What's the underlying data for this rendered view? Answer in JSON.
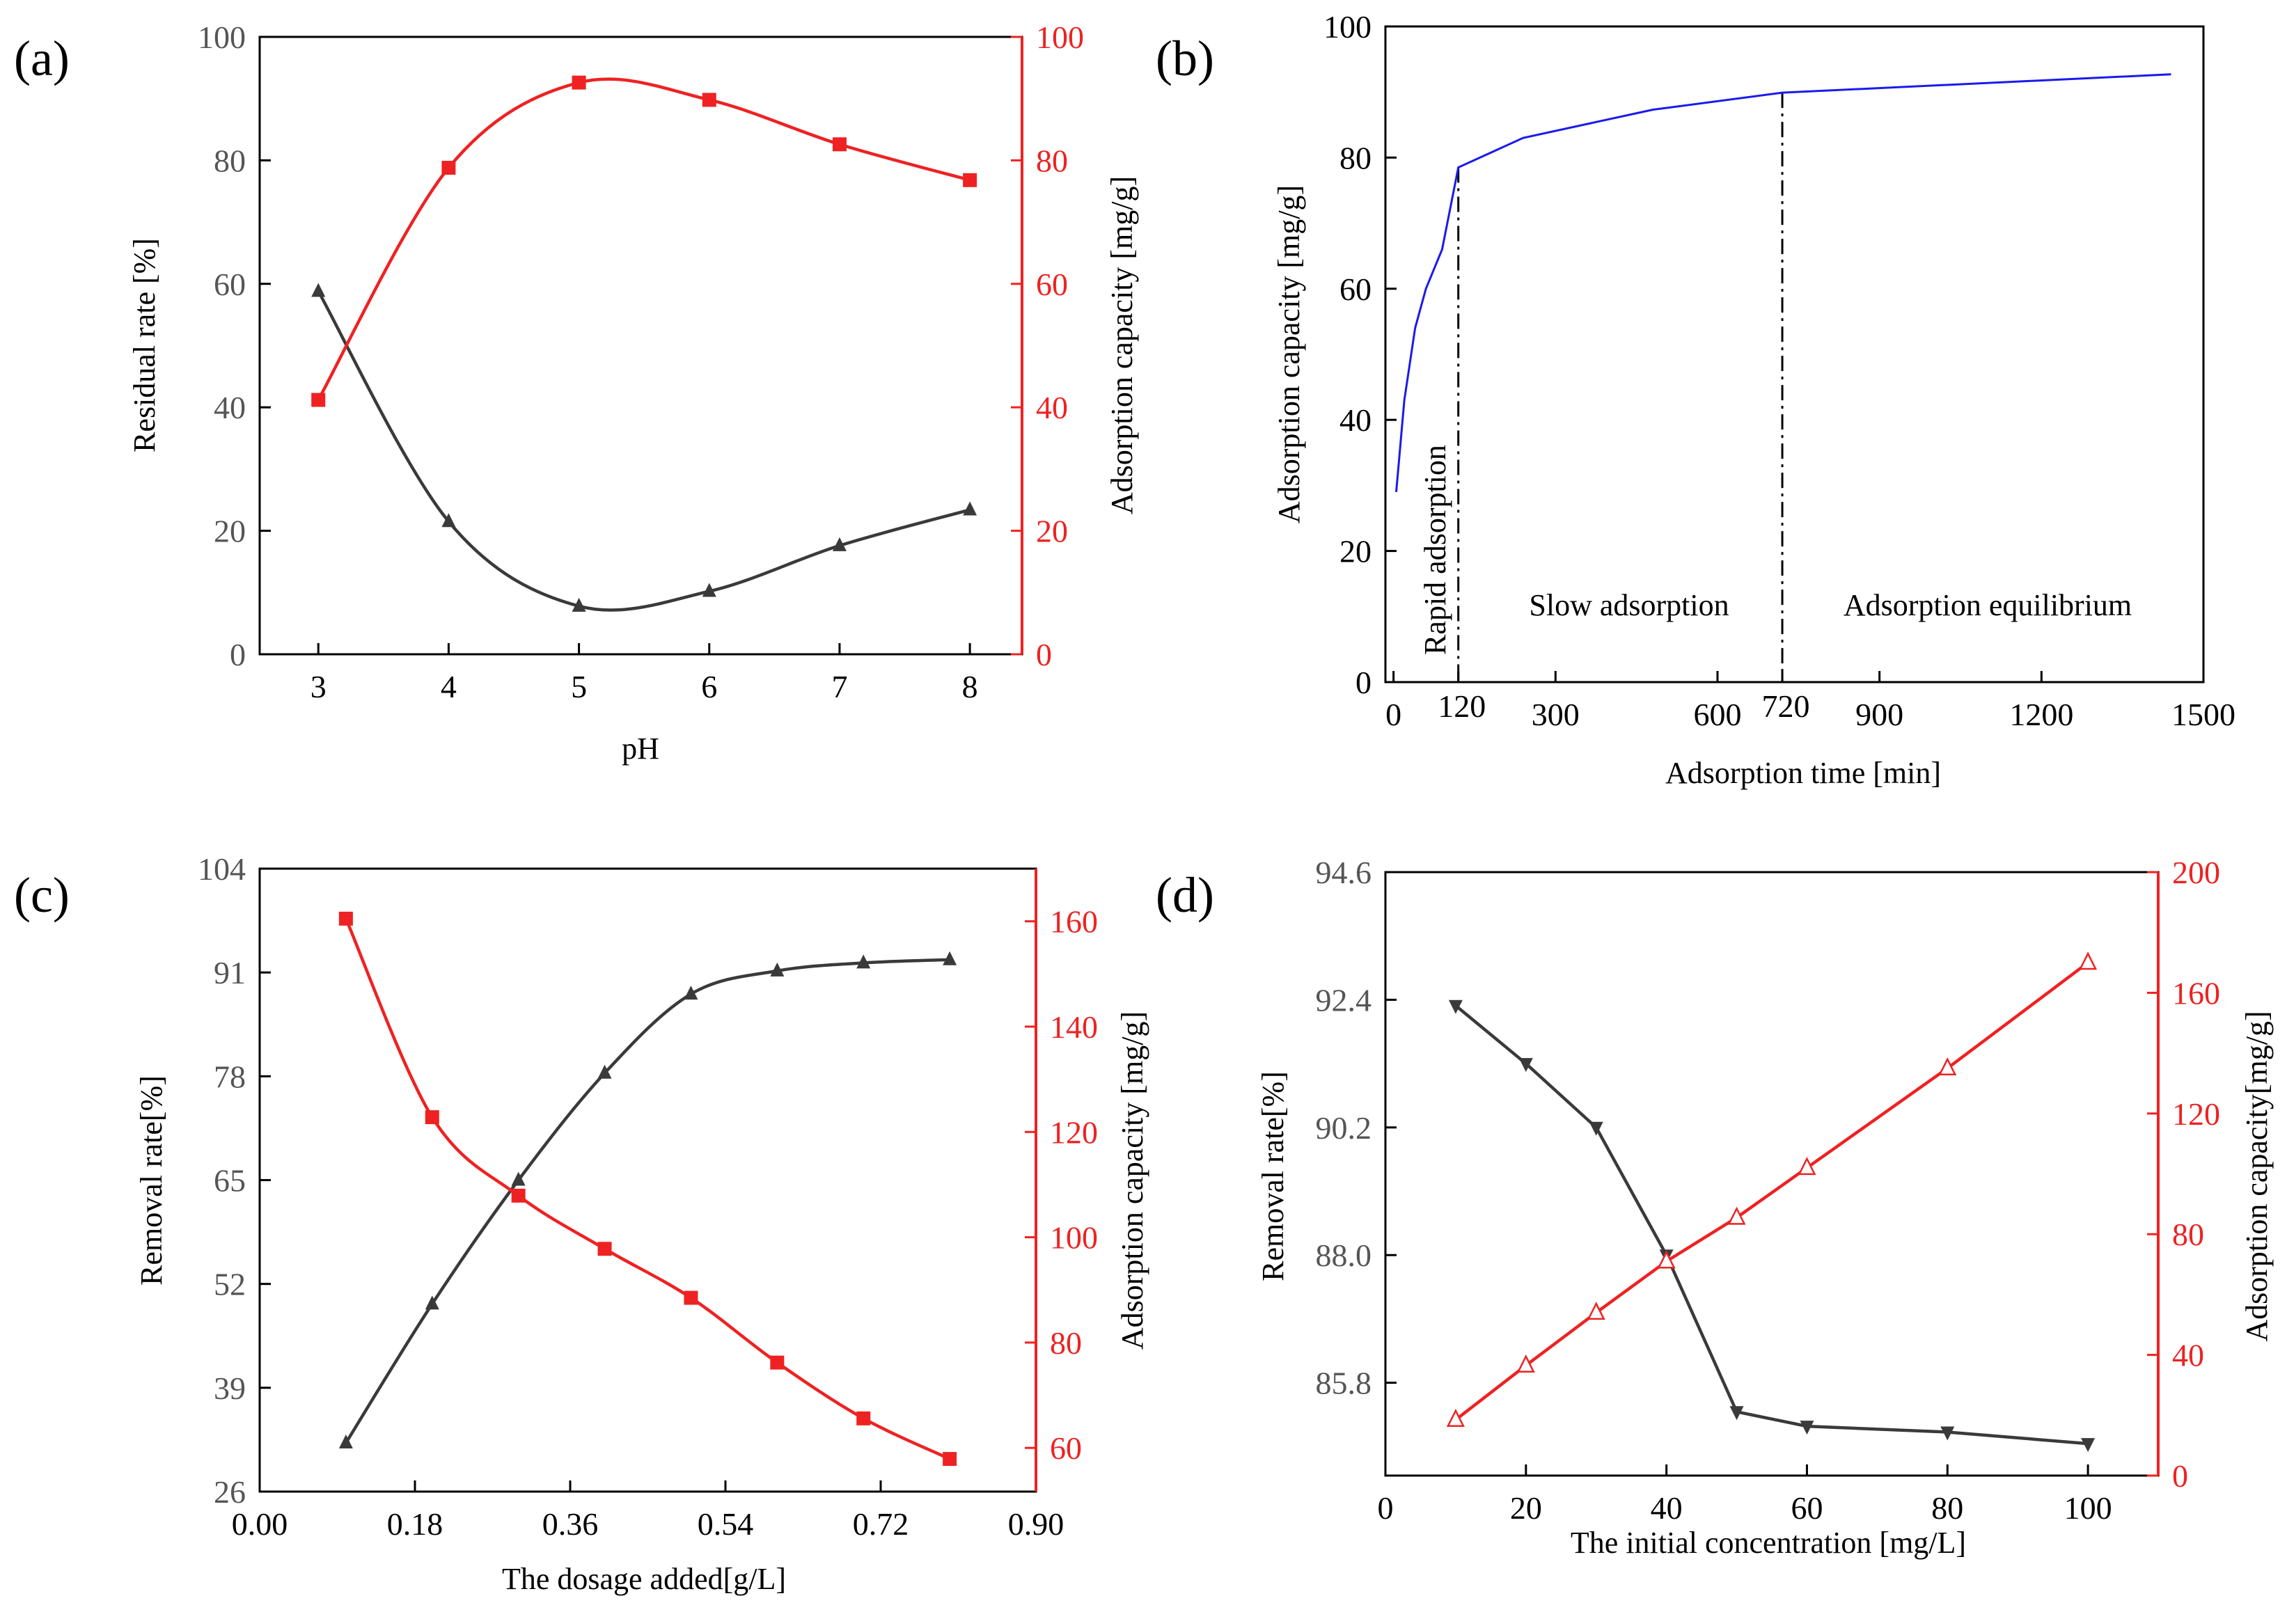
{
  "colors": {
    "dark": "#3a3a3a",
    "red": "#ee2222",
    "blue": "#1a1aee",
    "axis_dark": "#555555"
  },
  "chart_data": [
    {
      "id": "a",
      "type": "line",
      "panel_label": "(a)",
      "xlabel": "pH",
      "ylabel": "Residual rate [%]",
      "y2label": "Adsorption capacity [mg/g]",
      "xlim": [
        2.55,
        8.4
      ],
      "ylim": [
        0,
        100
      ],
      "y2lim": [
        0,
        100
      ],
      "xticks": [
        3,
        4,
        5,
        6,
        7,
        8
      ],
      "yticks": [
        0,
        20,
        40,
        60,
        80,
        100
      ],
      "y2ticks": [
        0,
        20,
        40,
        60,
        80,
        100
      ],
      "series": [
        {
          "axis": "left",
          "color": "#3a3a3a",
          "marker": "triangle-up",
          "x": [
            3,
            4,
            5,
            6,
            7,
            8
          ],
          "y": [
            58.8,
            21.5,
            7.8,
            10.2,
            17.6,
            23.4
          ]
        },
        {
          "axis": "right",
          "color": "#ee2222",
          "marker": "square",
          "x": [
            3,
            4,
            5,
            6,
            7,
            8
          ],
          "y": [
            41.2,
            78.8,
            92.6,
            89.8,
            82.6,
            76.8
          ]
        }
      ]
    },
    {
      "id": "b",
      "type": "line",
      "panel_label": "(b)",
      "xlabel": "Adsorption time [min]",
      "ylabel": "Adsorption capacity [mg/g]",
      "xlim": [
        -15,
        1500
      ],
      "ylim": [
        0,
        100
      ],
      "xticks": [
        0,
        300,
        600,
        900,
        1200,
        1500
      ],
      "extra_xticks": [
        120,
        720
      ],
      "yticks": [
        0,
        20,
        40,
        60,
        80,
        100
      ],
      "vlines": [
        120,
        720
      ],
      "annotations": [
        "Rapid adsorption",
        "Slow adsorption",
        "Adsorption equilibrium"
      ],
      "series": [
        {
          "axis": "left",
          "color": "#1a1aee",
          "marker": "none",
          "x": [
            5,
            20,
            40,
            60,
            90,
            120,
            240,
            480,
            720,
            1440
          ],
          "y": [
            29,
            43,
            54,
            60,
            66,
            78.5,
            83,
            87.3,
            89.9,
            92.7
          ]
        }
      ]
    },
    {
      "id": "c",
      "type": "line",
      "panel_label": "(c)",
      "xlabel": "The dosage added[g/L]",
      "ylabel": "Removal rate[%]",
      "y2label": "Adsorption capacity [mg/g]",
      "xlim": [
        0,
        0.9
      ],
      "ylim": [
        26,
        104
      ],
      "y2lim": [
        51.7,
        170
      ],
      "xticks": [
        "0.00",
        "0.18",
        "0.36",
        "0.54",
        "0.72",
        "0.90"
      ],
      "yticks": [
        26,
        39,
        52,
        65,
        78,
        91,
        104
      ],
      "y2ticks": [
        60,
        80,
        100,
        120,
        140,
        160
      ],
      "series": [
        {
          "axis": "left",
          "color": "#3a3a3a",
          "marker": "triangle-up",
          "x": [
            0.1,
            0.2,
            0.3,
            0.4,
            0.5,
            0.6,
            0.7,
            0.8
          ],
          "y": [
            32.1,
            49.5,
            65.0,
            78.4,
            88.3,
            91.2,
            92.2,
            92.6
          ]
        },
        {
          "axis": "right",
          "color": "#ee2222",
          "marker": "square",
          "x": [
            0.1,
            0.2,
            0.3,
            0.4,
            0.5,
            0.6,
            0.7,
            0.8
          ],
          "y": [
            160.5,
            122.8,
            107.9,
            97.8,
            88.5,
            76.2,
            65.6,
            57.9
          ]
        }
      ]
    },
    {
      "id": "d",
      "type": "line",
      "panel_label": "(d)",
      "xlabel": "The initial concentration [mg/L]",
      "ylabel": "Removal rate[%]",
      "y2label": "Adsorption capacity[mg/g]",
      "xlim": [
        0,
        110
      ],
      "ylim": [
        84.2,
        94.6
      ],
      "y2lim": [
        0,
        200
      ],
      "xticks": [
        0,
        20,
        40,
        60,
        80,
        100
      ],
      "yticks": [
        "85.8",
        "88.0",
        "90.2",
        "92.4",
        "94.6"
      ],
      "y2ticks": [
        0,
        40,
        80,
        120,
        160,
        200
      ],
      "series": [
        {
          "axis": "left",
          "color": "#3a3a3a",
          "marker": "triangle-down",
          "x": [
            10,
            20,
            30,
            40,
            50,
            60,
            80,
            100
          ],
          "y": [
            92.3,
            91.3,
            90.2,
            88.0,
            85.3,
            85.05,
            84.95,
            84.75
          ]
        },
        {
          "axis": "right",
          "color": "#ee2222",
          "marker": "triangle-open",
          "x": [
            10,
            20,
            30,
            40,
            50,
            60,
            80,
            100
          ],
          "y": [
            18.5,
            36.5,
            54,
            71,
            85.5,
            102,
            135,
            170
          ]
        }
      ]
    }
  ]
}
